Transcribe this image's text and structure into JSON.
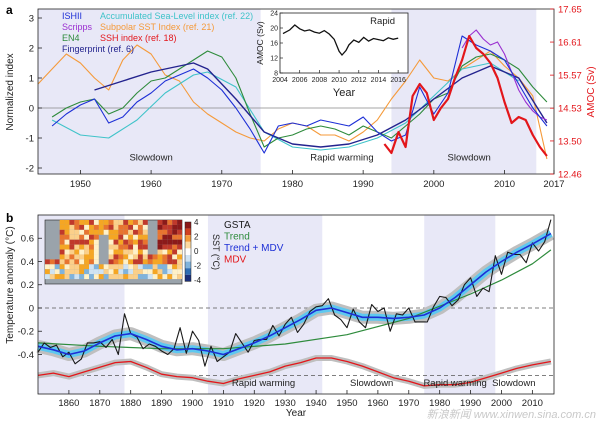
{
  "chart_data": [
    {
      "panel_label": "a",
      "type": "line",
      "xlabel": "",
      "ylabel": "Normalized index",
      "y2label": "AMOC (Sv)",
      "xlim": [
        1944,
        2017
      ],
      "ylim": [
        -2.2,
        3.3
      ],
      "y2lim": [
        12.46,
        17.65
      ],
      "xticks": [
        1950,
        1960,
        1970,
        1980,
        1990,
        2000,
        2010,
        2017
      ],
      "yticks": [
        -2,
        -1,
        0,
        1,
        2,
        3
      ],
      "y2ticks": [
        12.46,
        13.5,
        14.53,
        15.57,
        16.61,
        17.65
      ],
      "y2tick_labels": [
        "12.46",
        "13.50",
        "14.53",
        "15.57",
        "16.61",
        "17.65"
      ],
      "y2_color": "#e3161b",
      "shaded_periods": [
        [
          1944,
          1975.5
        ],
        [
          1994,
          2014.5
        ]
      ],
      "period_labels": [
        {
          "text": "Slowdown",
          "x": 1960,
          "y": -1.75
        },
        {
          "text": "Rapid warming",
          "x": 1987,
          "y": -1.75
        },
        {
          "text": "Slowdown",
          "x": 2005,
          "y": -1.75
        }
      ],
      "legend_position": "top-left",
      "series": [
        {
          "name": "ISHII",
          "color": "#1d2fd6",
          "x": [
            1946,
            1948,
            1950,
            1952,
            1954,
            1956,
            1958,
            1960,
            1962,
            1964,
            1966,
            1968,
            1970,
            1972,
            1974,
            1976,
            1978,
            1980,
            1982,
            1984,
            1986,
            1988,
            1990,
            1992,
            1994,
            1996,
            1998,
            2000,
            2002,
            2004,
            2006,
            2008,
            2010,
            2012,
            2014,
            2016
          ],
          "values": [
            -0.6,
            -0.2,
            0.1,
            0.3,
            -0.5,
            -0.3,
            0.2,
            0.5,
            0.9,
            1.1,
            1.3,
            1.0,
            0.6,
            0.0,
            -0.7,
            -1.5,
            -0.6,
            -0.5,
            -0.6,
            -0.4,
            -0.5,
            -0.6,
            -0.3,
            -0.8,
            -1.1,
            -0.9,
            0.7,
            -0.2,
            0.5,
            2.4,
            2.1,
            1.9,
            1.6,
            0.8,
            0.0,
            -0.6
          ]
        },
        {
          "name": "Scripps",
          "color": "#9a2fd0",
          "x": [
            2004,
            2005,
            2006,
            2007,
            2008,
            2009,
            2010,
            2011,
            2012,
            2013,
            2014,
            2015,
            2016
          ],
          "values": [
            2.0,
            2.4,
            2.6,
            2.3,
            2.1,
            2.2,
            1.8,
            1.2,
            0.6,
            0.2,
            -0.1,
            -0.3,
            -0.4
          ]
        },
        {
          "name": "EN4",
          "color": "#2e8b3c",
          "x": [
            1946,
            1948,
            1950,
            1952,
            1954,
            1956,
            1958,
            1960,
            1962,
            1964,
            1966,
            1968,
            1970,
            1972,
            1974,
            1976,
            1978,
            1980,
            1982,
            1984,
            1986,
            1988,
            1990,
            1992,
            1994,
            1996,
            1998,
            2000,
            2002,
            2004,
            2006,
            2008,
            2010,
            2012,
            2014,
            2016
          ],
          "values": [
            -0.3,
            0.0,
            0.2,
            0.3,
            -0.2,
            0.0,
            0.5,
            0.9,
            1.0,
            1.3,
            1.6,
            1.9,
            1.7,
            1.0,
            -0.2,
            -1.3,
            -1.0,
            -0.9,
            -0.7,
            -0.6,
            -0.7,
            -0.9,
            -0.6,
            -0.8,
            -1.0,
            -0.6,
            -0.2,
            0.3,
            0.5,
            1.4,
            1.7,
            1.8,
            1.6,
            1.3,
            0.7,
            0.2
          ]
        },
        {
          "name": "Fingerprint (ref. 6)",
          "color": "#23238e",
          "x": [
            1952,
            1956,
            1960,
            1964,
            1966,
            1968,
            1972,
            1976,
            1980,
            1984,
            1988,
            1992,
            1996,
            2000,
            2004,
            2008,
            2012,
            2016
          ],
          "values": [
            0.6,
            0.9,
            1.2,
            1.4,
            1.5,
            1.3,
            0.3,
            -0.8,
            -1.2,
            -1.3,
            -1.2,
            -0.9,
            -0.4,
            0.3,
            1.0,
            1.4,
            1.0,
            -0.5
          ]
        },
        {
          "name": "Accumulated Sea-Level index (ref. 22)",
          "color": "#3fc3c9",
          "x": [
            1946,
            1950,
            1954,
            1958,
            1962,
            1966,
            1968,
            1972,
            1976,
            1980,
            1984,
            1988,
            1992,
            1996,
            2000,
            2004,
            2008,
            2012
          ],
          "values": [
            -0.4,
            -0.9,
            -1.0,
            -0.4,
            0.5,
            1.1,
            1.2,
            0.7,
            -0.8,
            -1.3,
            -1.4,
            -1.3,
            -1.0,
            -0.5,
            0.4,
            1.3,
            1.5,
            0.9
          ]
        },
        {
          "name": "Subpolar SST Index (ref. 21)",
          "color": "#f59a3a",
          "x": [
            1944,
            1946,
            1948,
            1950,
            1952,
            1954,
            1956,
            1958,
            1960,
            1962,
            1964,
            1966,
            1968,
            1970,
            1972,
            1974,
            1976,
            1978,
            1980,
            1982,
            1984,
            1986,
            1988,
            1990,
            1992,
            1994,
            1996,
            1998,
            2000,
            2002,
            2004,
            2006,
            2008,
            2010,
            2012,
            2014,
            2016
          ],
          "values": [
            0.8,
            1.3,
            1.8,
            1.5,
            1.0,
            0.6,
            1.6,
            2.1,
            1.8,
            1.1,
            0.9,
            0.2,
            -0.2,
            -0.5,
            -0.8,
            -1.0,
            -1.1,
            -0.7,
            -0.5,
            -0.6,
            -0.9,
            -0.9,
            -1.1,
            -0.8,
            -0.4,
            0.3,
            0.9,
            1.6,
            1.0,
            0.9,
            1.3,
            1.6,
            1.9,
            1.4,
            1.0,
            0.4,
            -1.7
          ]
        },
        {
          "name": "SSH index (ref. 18)",
          "color": "#e3161b",
          "x": [
            1993,
            1994,
            1995,
            1996,
            1997,
            1998,
            1999,
            2000,
            2001,
            2002,
            2003,
            2004,
            2005,
            2006,
            2007,
            2008,
            2009,
            2010,
            2011,
            2012,
            2013,
            2014,
            2015,
            2016
          ],
          "values": [
            -1.2,
            -1.5,
            -0.8,
            -1.3,
            0.4,
            0.8,
            0.5,
            -0.4,
            0.0,
            0.3,
            1.0,
            1.6,
            2.4,
            2.0,
            1.8,
            1.5,
            1.0,
            0.2,
            -0.5,
            -0.3,
            -0.4,
            -0.9,
            -1.3,
            -1.6
          ]
        }
      ],
      "inset": {
        "title": "Rapid",
        "xlabel": "Year",
        "ylabel": "AMOC (Sv)",
        "xlim": [
          2004,
          2017
        ],
        "ylim": [
          8,
          24
        ],
        "xticks": [
          2004,
          2006,
          2008,
          2010,
          2012,
          2014,
          2016
        ],
        "yticks": [
          8,
          12,
          16,
          20,
          24
        ],
        "x": [
          2004.3,
          2005,
          2005.5,
          2006,
          2006.5,
          2007,
          2007.5,
          2008,
          2008.5,
          2009,
          2009.5,
          2010,
          2010.3,
          2010.7,
          2011,
          2011.5,
          2012,
          2012.5,
          2013,
          2013.5,
          2014,
          2014.5,
          2015,
          2015.5,
          2016
        ],
        "values": [
          18.5,
          19.5,
          20.8,
          19.8,
          19.2,
          19.5,
          18.9,
          18.6,
          19.3,
          18.4,
          17.0,
          13.8,
          12.8,
          14.0,
          15.5,
          16.8,
          16.2,
          17.5,
          16.5,
          17.2,
          16.9,
          16.6,
          17.4,
          17.0,
          17.3
        ]
      }
    },
    {
      "panel_label": "b",
      "type": "line",
      "xlabel": "Year",
      "ylabel": "Temperature anomaly (°C)",
      "xlim": [
        1850,
        2017
      ],
      "ylim": [
        -0.74,
        0.8
      ],
      "xticks": [
        1860,
        1870,
        1880,
        1890,
        1900,
        1910,
        1920,
        1930,
        1940,
        1950,
        1960,
        1970,
        1980,
        1990,
        2000,
        2010
      ],
      "yticks": [
        -0.4,
        -0.2,
        0,
        0.2,
        0.4,
        0.6
      ],
      "shaded_periods": [
        [
          1850,
          1878
        ],
        [
          1905,
          1942
        ],
        [
          1975,
          1998
        ]
      ],
      "period_labels": [
        {
          "text": "Rapid warming",
          "x": 1923,
          "y": -0.76
        },
        {
          "text": "Slowdown",
          "x": 1958,
          "y": -0.76
        },
        {
          "text": "Rapid warming",
          "x": 1985,
          "y": -0.76
        },
        {
          "text": "Slowdown",
          "x": 2004,
          "y": -0.76
        }
      ],
      "legend_position": "upper-center",
      "series": [
        {
          "name": "GSTA",
          "color": "#1a1a1a",
          "x": [
            1850,
            1852,
            1854,
            1856,
            1858,
            1860,
            1862,
            1864,
            1866,
            1868,
            1870,
            1872,
            1874,
            1876,
            1878,
            1880,
            1882,
            1884,
            1886,
            1888,
            1890,
            1892,
            1894,
            1896,
            1898,
            1900,
            1902,
            1904,
            1906,
            1908,
            1910,
            1912,
            1914,
            1916,
            1918,
            1920,
            1922,
            1924,
            1926,
            1928,
            1930,
            1932,
            1934,
            1936,
            1938,
            1940,
            1942,
            1944,
            1946,
            1948,
            1950,
            1952,
            1954,
            1956,
            1958,
            1960,
            1962,
            1964,
            1966,
            1968,
            1970,
            1972,
            1974,
            1976,
            1978,
            1980,
            1982,
            1984,
            1986,
            1988,
            1990,
            1992,
            1994,
            1996,
            1998,
            2000,
            2002,
            2004,
            2006,
            2008,
            2010,
            2012,
            2014,
            2016
          ],
          "values": [
            -0.38,
            -0.3,
            -0.34,
            -0.32,
            -0.42,
            -0.38,
            -0.48,
            -0.44,
            -0.3,
            -0.3,
            -0.29,
            -0.34,
            -0.27,
            -0.4,
            -0.05,
            -0.22,
            -0.25,
            -0.35,
            -0.31,
            -0.33,
            -0.37,
            -0.4,
            -0.35,
            -0.17,
            -0.39,
            -0.2,
            -0.28,
            -0.5,
            -0.33,
            -0.46,
            -0.42,
            -0.38,
            -0.22,
            -0.3,
            -0.38,
            -0.28,
            -0.27,
            -0.27,
            -0.15,
            -0.24,
            -0.14,
            -0.08,
            -0.21,
            -0.14,
            -0.03,
            0.01,
            0.02,
            0.08,
            -0.06,
            -0.1,
            -0.17,
            -0.01,
            -0.12,
            -0.17,
            0.03,
            -0.03,
            0.0,
            -0.2,
            -0.05,
            -0.06,
            0.0,
            -0.12,
            -0.12,
            -0.12,
            0.01,
            0.1,
            0.09,
            0.02,
            0.07,
            0.2,
            0.26,
            0.1,
            0.17,
            0.14,
            0.45,
            0.29,
            0.48,
            0.46,
            0.46,
            0.39,
            0.56,
            0.49,
            0.57,
            0.76
          ]
        },
        {
          "name": "Trend",
          "color": "#2e8b3c",
          "x": [
            1850,
            1870,
            1890,
            1910,
            1930,
            1950,
            1970,
            1990,
            2000,
            2010,
            2016
          ],
          "values": [
            -0.3,
            -0.33,
            -0.35,
            -0.35,
            -0.31,
            -0.23,
            -0.09,
            0.12,
            0.24,
            0.38,
            0.5
          ]
        },
        {
          "name": "Trend + MDV",
          "color": "#1d2fd6",
          "x": [
            1850,
            1855,
            1860,
            1865,
            1870,
            1875,
            1880,
            1885,
            1890,
            1895,
            1900,
            1905,
            1910,
            1915,
            1920,
            1925,
            1930,
            1935,
            1940,
            1945,
            1950,
            1955,
            1960,
            1965,
            1970,
            1975,
            1980,
            1985,
            1990,
            1995,
            2000,
            2005,
            2010,
            2016
          ],
          "values": [
            -0.33,
            -0.36,
            -0.4,
            -0.37,
            -0.3,
            -0.24,
            -0.22,
            -0.27,
            -0.33,
            -0.36,
            -0.35,
            -0.37,
            -0.4,
            -0.35,
            -0.3,
            -0.24,
            -0.17,
            -0.1,
            -0.02,
            0.0,
            -0.04,
            -0.08,
            -0.08,
            -0.09,
            -0.08,
            -0.06,
            0.0,
            0.09,
            0.2,
            0.31,
            0.4,
            0.48,
            0.55,
            0.64
          ]
        },
        {
          "name": "MDV",
          "color": "#e3161b",
          "x": [
            1850,
            1855,
            1860,
            1865,
            1870,
            1875,
            1880,
            1885,
            1890,
            1895,
            1900,
            1905,
            1910,
            1915,
            1920,
            1925,
            1930,
            1935,
            1940,
            1945,
            1950,
            1955,
            1960,
            1965,
            1970,
            1975,
            1980,
            1985,
            1990,
            1995,
            2000,
            2005,
            2010,
            2016
          ],
          "values": [
            -0.58,
            -0.56,
            -0.59,
            -0.55,
            -0.51,
            -0.47,
            -0.46,
            -0.51,
            -0.57,
            -0.59,
            -0.6,
            -0.63,
            -0.65,
            -0.61,
            -0.58,
            -0.55,
            -0.5,
            -0.47,
            -0.43,
            -0.43,
            -0.46,
            -0.5,
            -0.55,
            -0.6,
            -0.63,
            -0.67,
            -0.66,
            -0.66,
            -0.64,
            -0.6,
            -0.56,
            -0.52,
            -0.49,
            -0.46
          ]
        }
      ],
      "inset": {
        "colorbar_label": "SST (°C)",
        "colorbar_range": [
          -4,
          4
        ],
        "colorbar_ticks": [
          4,
          2,
          0,
          -2,
          -4
        ]
      }
    }
  ],
  "watermark": "新浪新闻 www.xinwen.sina.com.cn"
}
